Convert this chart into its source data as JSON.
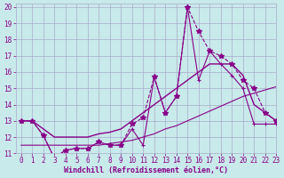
{
  "background_color": "#c8eaea",
  "grid_color": "#aaaacc",
  "line_color": "#880088",
  "xlabel": "Windchill (Refroidissement éolien,°C)",
  "xlabel_color": "#880088",
  "tick_color": "#880088",
  "xlim": [
    -0.5,
    23
  ],
  "ylim": [
    11,
    20.2
  ],
  "yticks": [
    11,
    12,
    13,
    14,
    15,
    16,
    17,
    18,
    19,
    20
  ],
  "xticks": [
    0,
    1,
    2,
    3,
    4,
    5,
    6,
    7,
    8,
    9,
    10,
    11,
    12,
    13,
    14,
    15,
    16,
    17,
    18,
    19,
    20,
    21,
    22,
    23
  ],
  "line1_x": [
    0,
    1,
    2,
    3,
    4,
    5,
    6,
    7,
    8,
    9,
    10,
    11,
    12,
    13,
    14,
    15,
    16,
    17,
    18,
    19,
    20,
    21,
    22,
    23
  ],
  "line1_y": [
    13,
    13,
    12.1,
    10.7,
    11.2,
    11.3,
    11.3,
    11.7,
    11.5,
    11.5,
    12.5,
    11.5,
    15.7,
    13.5,
    14.5,
    20.0,
    15.5,
    17.3,
    16.5,
    15.8,
    15.0,
    12.8,
    12.8,
    12.8
  ],
  "line2_x": [
    0,
    1,
    2,
    3,
    4,
    5,
    6,
    7,
    8,
    9,
    10,
    11,
    12,
    13,
    14,
    15,
    16,
    17,
    18,
    19,
    20,
    21,
    22,
    23
  ],
  "line2_y": [
    13,
    13,
    12.1,
    10.7,
    11.2,
    11.3,
    11.3,
    11.7,
    11.5,
    11.5,
    12.8,
    13.2,
    15.7,
    13.5,
    14.5,
    20.0,
    18.5,
    17.3,
    17.0,
    16.5,
    15.5,
    15.0,
    13.5,
    13.0
  ],
  "line3_x": [
    0,
    1,
    2,
    3,
    4,
    5,
    6,
    7,
    8,
    9,
    10,
    11,
    12,
    13,
    14,
    15,
    16,
    17,
    18,
    19,
    20,
    21,
    22,
    23
  ],
  "line3_y": [
    13.0,
    13.0,
    12.5,
    12.0,
    12.0,
    12.0,
    12.0,
    12.2,
    12.3,
    12.5,
    13.0,
    13.5,
    14.0,
    14.5,
    15.0,
    15.5,
    16.0,
    16.5,
    16.5,
    16.5,
    15.8,
    14.0,
    13.5,
    13.0
  ],
  "line4_x": [
    0,
    1,
    2,
    3,
    4,
    5,
    6,
    7,
    8,
    9,
    10,
    11,
    12,
    13,
    14,
    15,
    16,
    17,
    18,
    19,
    20,
    21,
    22,
    23
  ],
  "line4_y": [
    11.5,
    11.5,
    11.5,
    11.5,
    11.5,
    11.5,
    11.5,
    11.5,
    11.6,
    11.7,
    11.8,
    12.0,
    12.2,
    12.5,
    12.7,
    13.0,
    13.3,
    13.6,
    13.9,
    14.2,
    14.5,
    14.7,
    14.9,
    15.1
  ]
}
